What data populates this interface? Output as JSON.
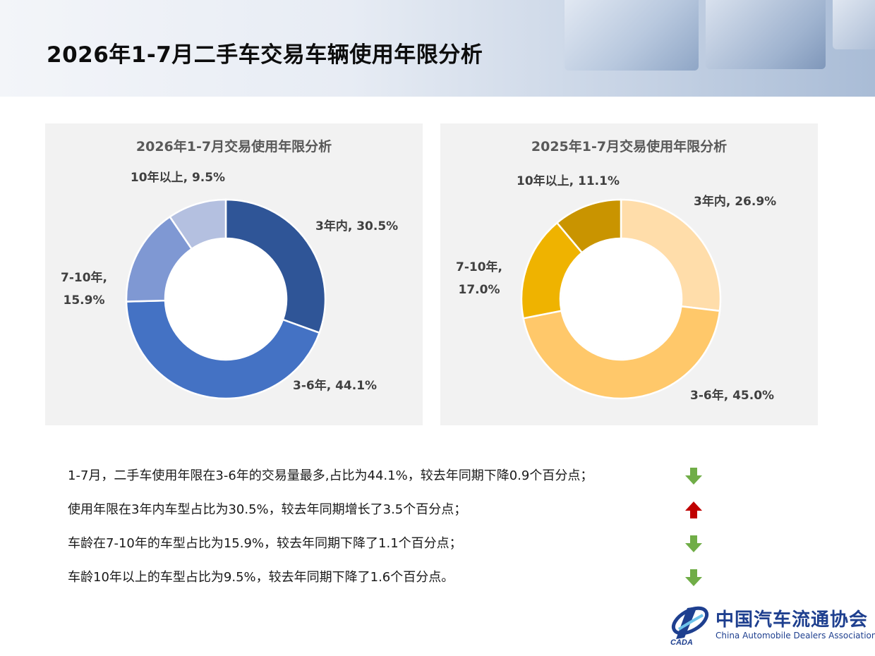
{
  "page": {
    "title": "2026年1-7月二手车交易车辆使用年限分析"
  },
  "chart_data": [
    {
      "type": "pie",
      "variant": "donut",
      "title": "2026年1-7月交易使用年限分析",
      "categories": [
        "3年内",
        "3-6年",
        "7-10年",
        "10年以上"
      ],
      "values": [
        30.5,
        44.1,
        15.9,
        9.5
      ],
      "unit": "%",
      "colors": [
        "#2f5597",
        "#4472c4",
        "#7f98d3",
        "#b4c0e0"
      ],
      "labels": [
        {
          "lines": [
            "3年内, 30.5%"
          ]
        },
        {
          "lines": [
            "3-6年, 44.1%"
          ]
        },
        {
          "lines": [
            "7-10年,",
            "15.9%"
          ]
        },
        {
          "lines": [
            "10年以上, 9.5%"
          ]
        }
      ],
      "legend": "none"
    },
    {
      "type": "pie",
      "variant": "donut",
      "title": "2025年1-7月交易使用年限分析",
      "categories": [
        "3年内",
        "3-6年",
        "7-10年",
        "10年以上"
      ],
      "values": [
        26.9,
        45.0,
        17.0,
        11.1
      ],
      "unit": "%",
      "colors": [
        "#ffddaa",
        "#ffc86a",
        "#efb300",
        "#c99400"
      ],
      "labels": [
        {
          "lines": [
            "3年内, 26.9%"
          ]
        },
        {
          "lines": [
            "3-6年, 45.0%"
          ]
        },
        {
          "lines": [
            "7-10年,",
            "17.0%"
          ]
        },
        {
          "lines": [
            "10年以上, 11.1%"
          ]
        }
      ],
      "legend": "none"
    }
  ],
  "notes": [
    {
      "text": "1-7月，二手车使用年限在3-6年的交易量最多,占比为44.1%，较去年同期下降0.9个百分点；",
      "trend": "down",
      "trend_icon": "arrow-down-icon",
      "color": "#70ad47"
    },
    {
      "text": "使用年限在3年内车型占比为30.5%，较去年同期增长了3.5个百分点；",
      "trend": "up",
      "trend_icon": "arrow-up-icon",
      "color": "#c00000"
    },
    {
      "text": "车龄在7-10年的车型占比为15.9%，较去年同期下降了1.1个百分点；",
      "trend": "down",
      "trend_icon": "arrow-down-icon",
      "color": "#70ad47"
    },
    {
      "text": "车龄10年以上的车型占比为9.5%，较去年同期下降了1.6个百分点。",
      "trend": "down",
      "trend_icon": "arrow-down-icon",
      "color": "#70ad47"
    }
  ],
  "logo": {
    "name_cn": "中国汽车流通协会",
    "name_en": "China Automobile Dealers Association",
    "abbr": "CADA"
  }
}
